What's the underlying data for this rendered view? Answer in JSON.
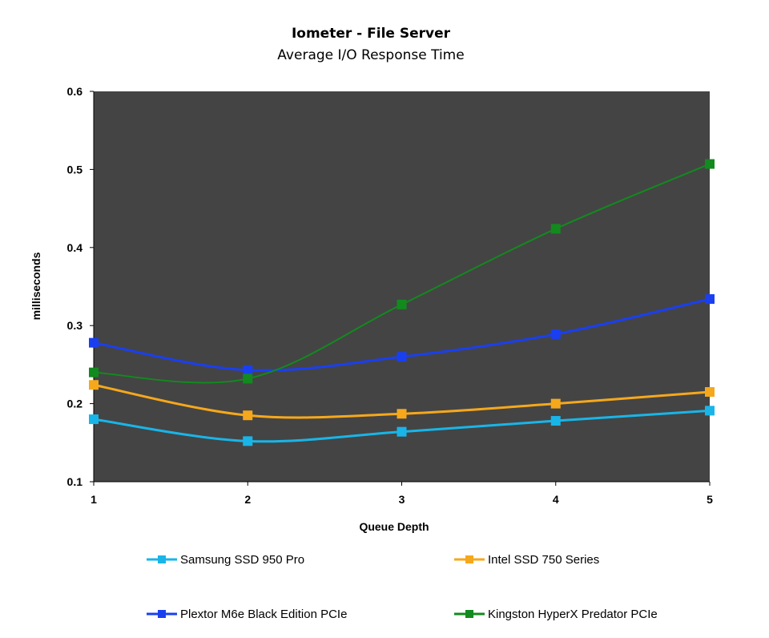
{
  "chart_data": {
    "type": "line",
    "title": "Iometer - File Server",
    "subtitle": "Average I/O Response Time",
    "xlabel": "Queue Depth",
    "ylabel": "milliseconds",
    "x": [
      1,
      2,
      3,
      4,
      5
    ],
    "xticks": [
      "1",
      "2",
      "3",
      "4",
      "5"
    ],
    "ylim": [
      0.1,
      0.6
    ],
    "yticks": [
      "0.1",
      "0.2",
      "0.3",
      "0.4",
      "0.5",
      "0.6"
    ],
    "grid": false,
    "plot_background": "#444444",
    "legend_position": "bottom",
    "series": [
      {
        "name": "Samsung SSD 950 Pro",
        "color": "#19b5e8",
        "width": 3,
        "values": [
          0.18,
          0.152,
          0.164,
          0.178,
          0.191
        ]
      },
      {
        "name": "Intel SSD 750 Series",
        "color": "#f5a81c",
        "width": 3,
        "values": [
          0.224,
          0.185,
          0.187,
          0.2,
          0.215
        ]
      },
      {
        "name": "Plextor M6e Black Edition PCIe",
        "color": "#1a3ff0",
        "width": 3,
        "values": [
          0.278,
          0.243,
          0.26,
          0.289,
          0.334
        ]
      },
      {
        "name": "Kingston HyperX Predator PCIe",
        "color": "#128a1e",
        "width": 2,
        "values": [
          0.24,
          0.232,
          0.327,
          0.424,
          0.507
        ]
      }
    ]
  }
}
